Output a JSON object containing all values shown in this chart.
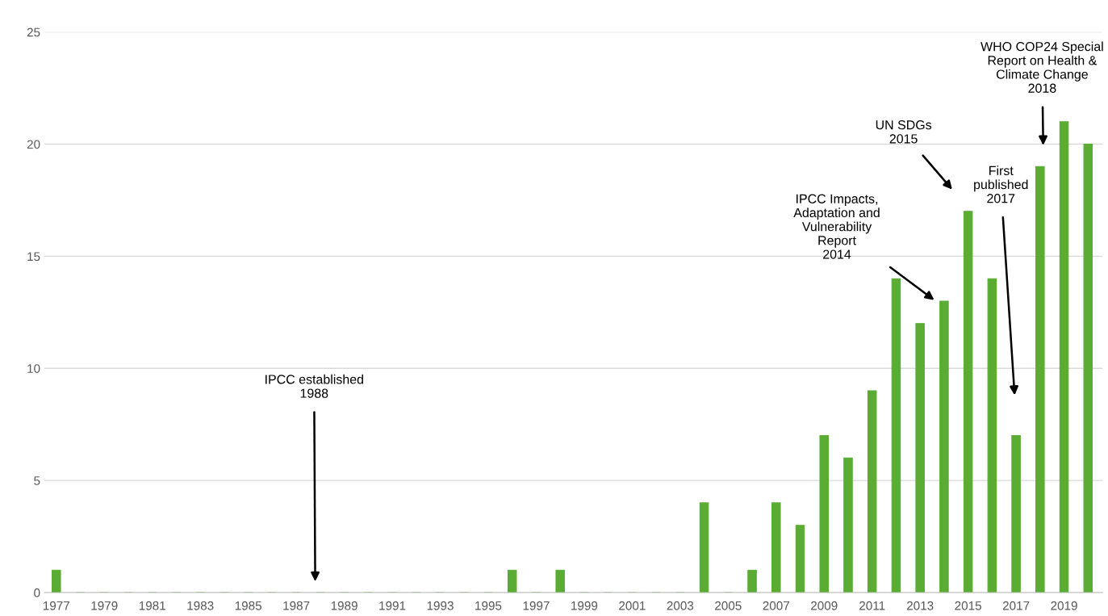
{
  "chart_data": {
    "type": "bar",
    "x": [
      1977,
      1978,
      1979,
      1980,
      1981,
      1982,
      1983,
      1984,
      1985,
      1986,
      1987,
      1988,
      1989,
      1990,
      1991,
      1992,
      1993,
      1994,
      1995,
      1996,
      1997,
      1998,
      1999,
      2000,
      2001,
      2002,
      2003,
      2004,
      2005,
      2006,
      2007,
      2008,
      2009,
      2010,
      2011,
      2012,
      2013,
      2014,
      2015,
      2016,
      2017,
      2018,
      2019,
      2020
    ],
    "values": [
      1,
      0,
      0,
      0,
      0,
      0,
      0,
      0,
      0,
      0,
      0,
      0,
      0,
      0,
      0,
      0,
      0,
      0,
      0,
      1,
      0,
      1,
      0,
      0,
      0,
      0,
      0,
      4,
      0,
      1,
      4,
      3,
      7,
      6,
      9,
      14,
      12,
      13,
      17,
      14,
      7,
      19,
      21,
      20
    ],
    "color": "#5aac32",
    "xlim": [
      1976.5,
      2020.6
    ],
    "xticks": [
      1977,
      1979,
      1981,
      1983,
      1985,
      1987,
      1989,
      1991,
      1993,
      1995,
      1997,
      1999,
      2001,
      2003,
      2005,
      2007,
      2009,
      2011,
      2013,
      2015,
      2017,
      2019
    ],
    "ylim": [
      0,
      25
    ],
    "yticks": [
      0,
      5,
      10,
      15,
      20,
      25
    ],
    "grid": "y",
    "annotations": [
      "IPCC established\n1988",
      "IPCC Impacts,\nAdaptation and\nVulnerability\nReport\n2014",
      "UN SDGs\n2015",
      "First\npublished\n2017",
      "WHO COP24 Special\nReport on Health &\nClimate Change\n2018"
    ]
  }
}
